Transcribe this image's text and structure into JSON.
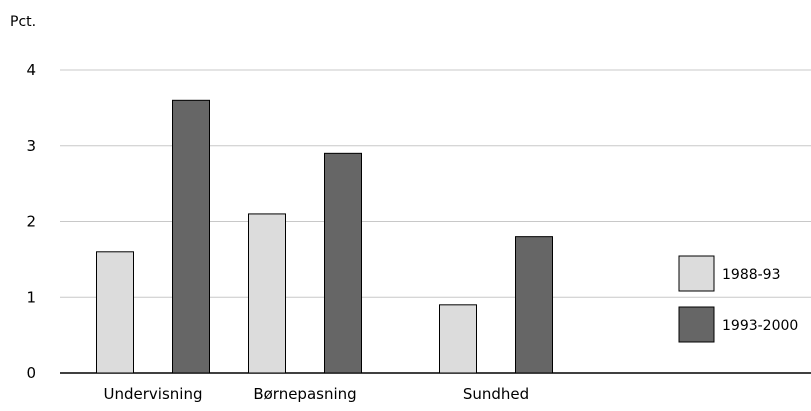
{
  "chart_data": {
    "type": "bar",
    "ylabel": "Pct.",
    "categories": [
      "Undervisning",
      "Børnepasning",
      "Sundhed"
    ],
    "series": [
      {
        "name": "1988-93",
        "values": [
          1.6,
          2.1,
          0.9
        ],
        "color": "#dcdcdc"
      },
      {
        "name": "1993-2000",
        "values": [
          3.6,
          2.9,
          1.8
        ],
        "color": "#666666"
      }
    ],
    "ylim": [
      0,
      4
    ],
    "yticks": [
      "0",
      "1",
      "2",
      "3",
      "4"
    ],
    "grid": true,
    "legend": "right"
  }
}
